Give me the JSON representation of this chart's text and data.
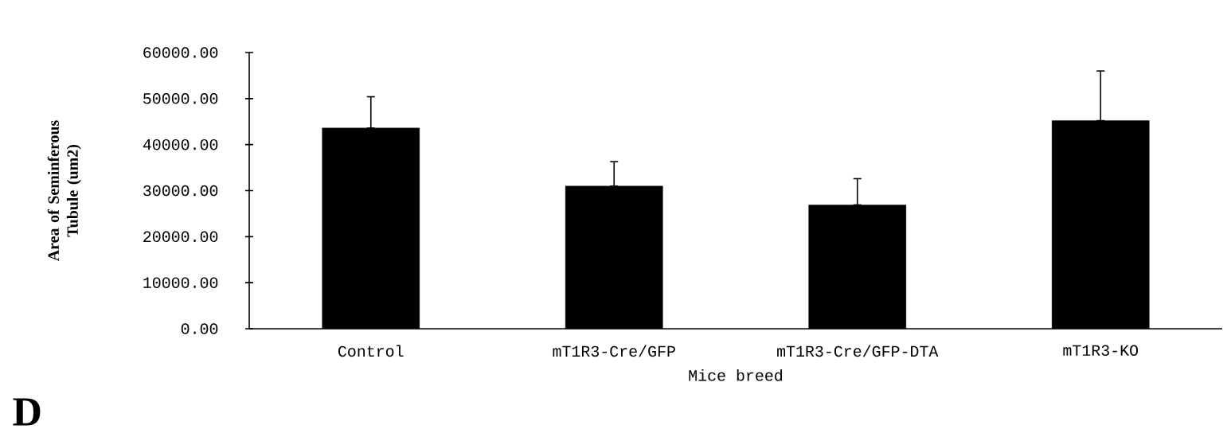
{
  "chart_data": {
    "type": "bar",
    "categories": [
      "Control",
      "mT1R3-Cre/GFP",
      "mT1R3-Cre/GFP-DTA",
      "mT1R3-KO"
    ],
    "values": [
      43600,
      31000,
      26900,
      45200
    ],
    "errors": [
      [
        43600,
        50400
      ],
      [
        31000,
        36300
      ],
      [
        26900,
        32600
      ],
      [
        45200,
        56000
      ]
    ],
    "color": "#000000",
    "xlabel": "Mice breed",
    "ylabel": "Area of Seminferous Tubule (um2)",
    "ylim": [
      0,
      60000
    ],
    "yticks": [
      {
        "value": 0,
        "label": "0.00"
      },
      {
        "value": 10000,
        "label": "10000.00"
      },
      {
        "value": 20000,
        "label": "20000.00"
      },
      {
        "value": 30000,
        "label": "30000.00"
      },
      {
        "value": 40000,
        "label": "40000.00"
      },
      {
        "value": 50000,
        "label": "50000.00"
      },
      {
        "value": 60000,
        "label": "60000.00"
      }
    ],
    "grid": false,
    "annotations": [
      "D"
    ]
  }
}
